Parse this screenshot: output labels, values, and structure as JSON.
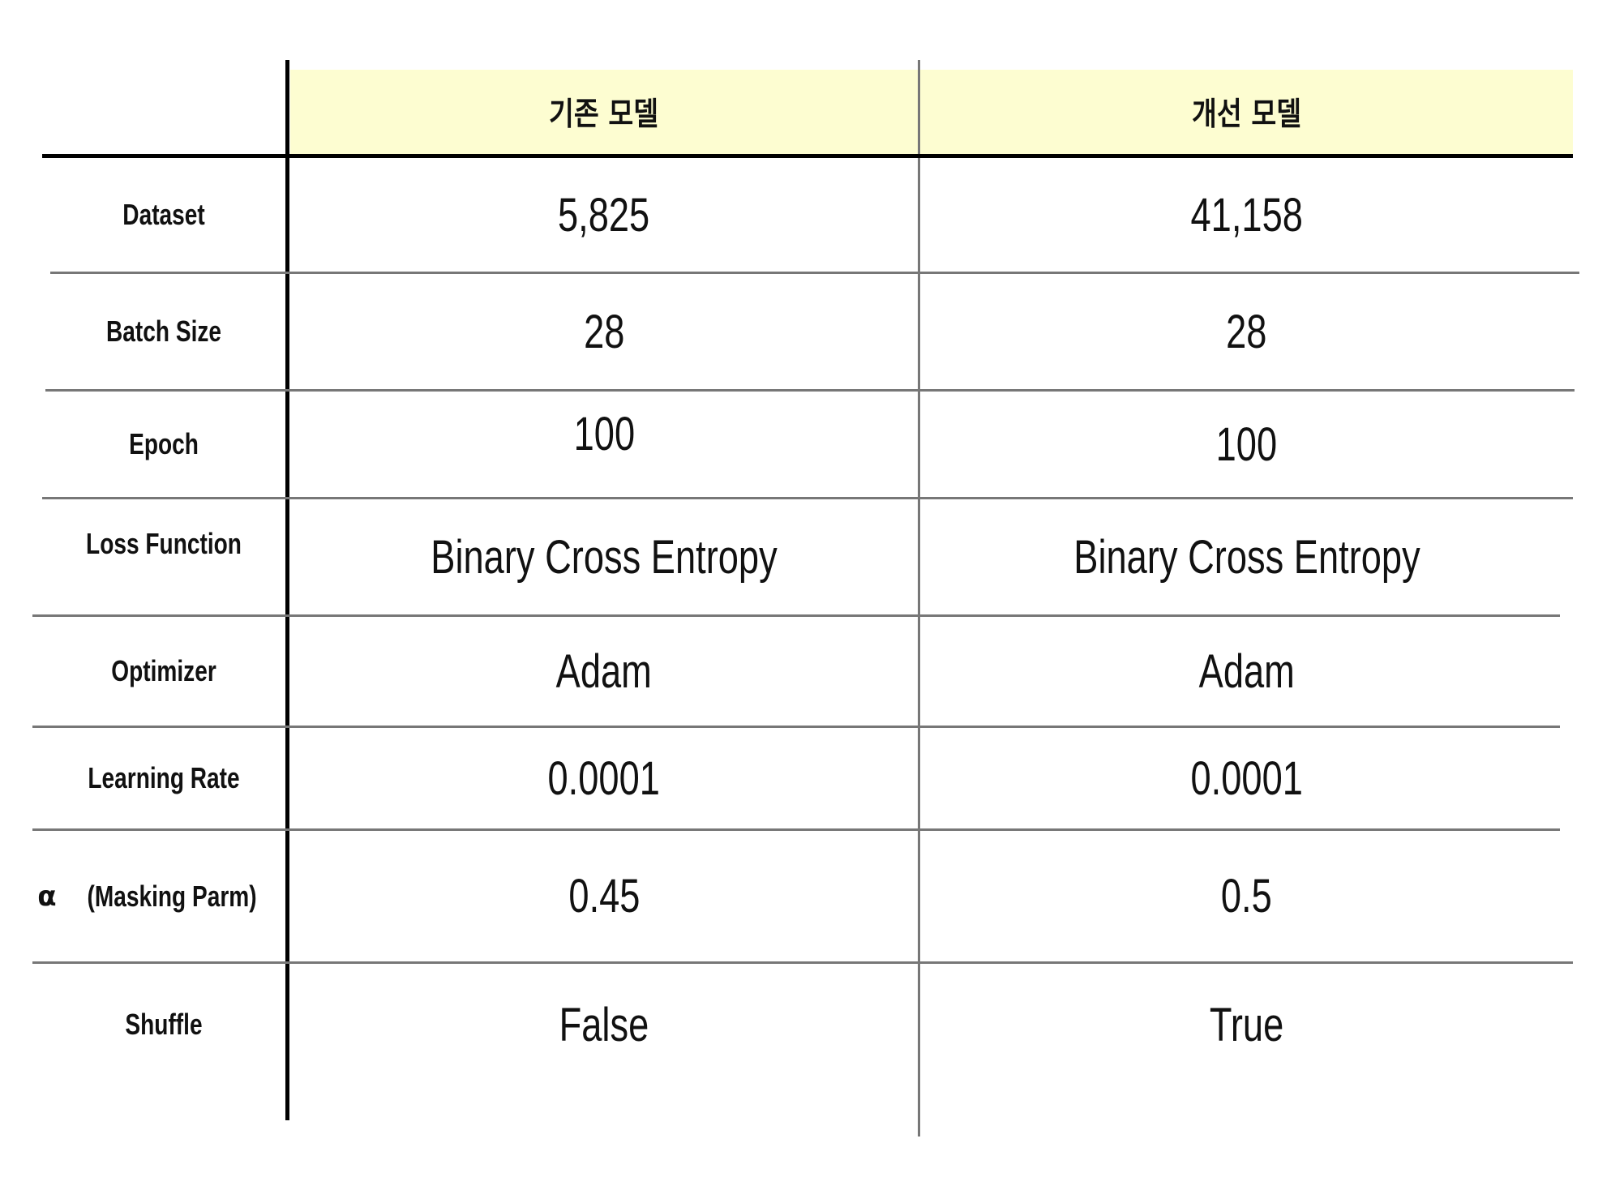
{
  "table": {
    "columns": [
      "기존 모델",
      "개선 모델"
    ],
    "rows": [
      {
        "label": "Dataset",
        "values": [
          "5,825",
          "41,158"
        ]
      },
      {
        "label": "Batch Size",
        "values": [
          "28",
          "28"
        ]
      },
      {
        "label": "Epoch",
        "values": [
          "100",
          "100"
        ]
      },
      {
        "label": "Loss Function",
        "values": [
          "Binary Cross Entropy",
          "Binary Cross Entropy"
        ]
      },
      {
        "label": "Optimizer",
        "values": [
          "Adam",
          "Adam"
        ]
      },
      {
        "label": "Learning Rate",
        "values": [
          "0.0001",
          "0.0001"
        ]
      },
      {
        "label": "(Masking Parm)",
        "symbol": "α",
        "values": [
          "0.45",
          "0.5"
        ]
      },
      {
        "label": "Shuffle",
        "values": [
          "False",
          "True"
        ]
      }
    ]
  },
  "colors": {
    "header_background": "#fdfdd1",
    "grid_line": "#777777",
    "strong_line": "#000000",
    "text": "#111111"
  }
}
